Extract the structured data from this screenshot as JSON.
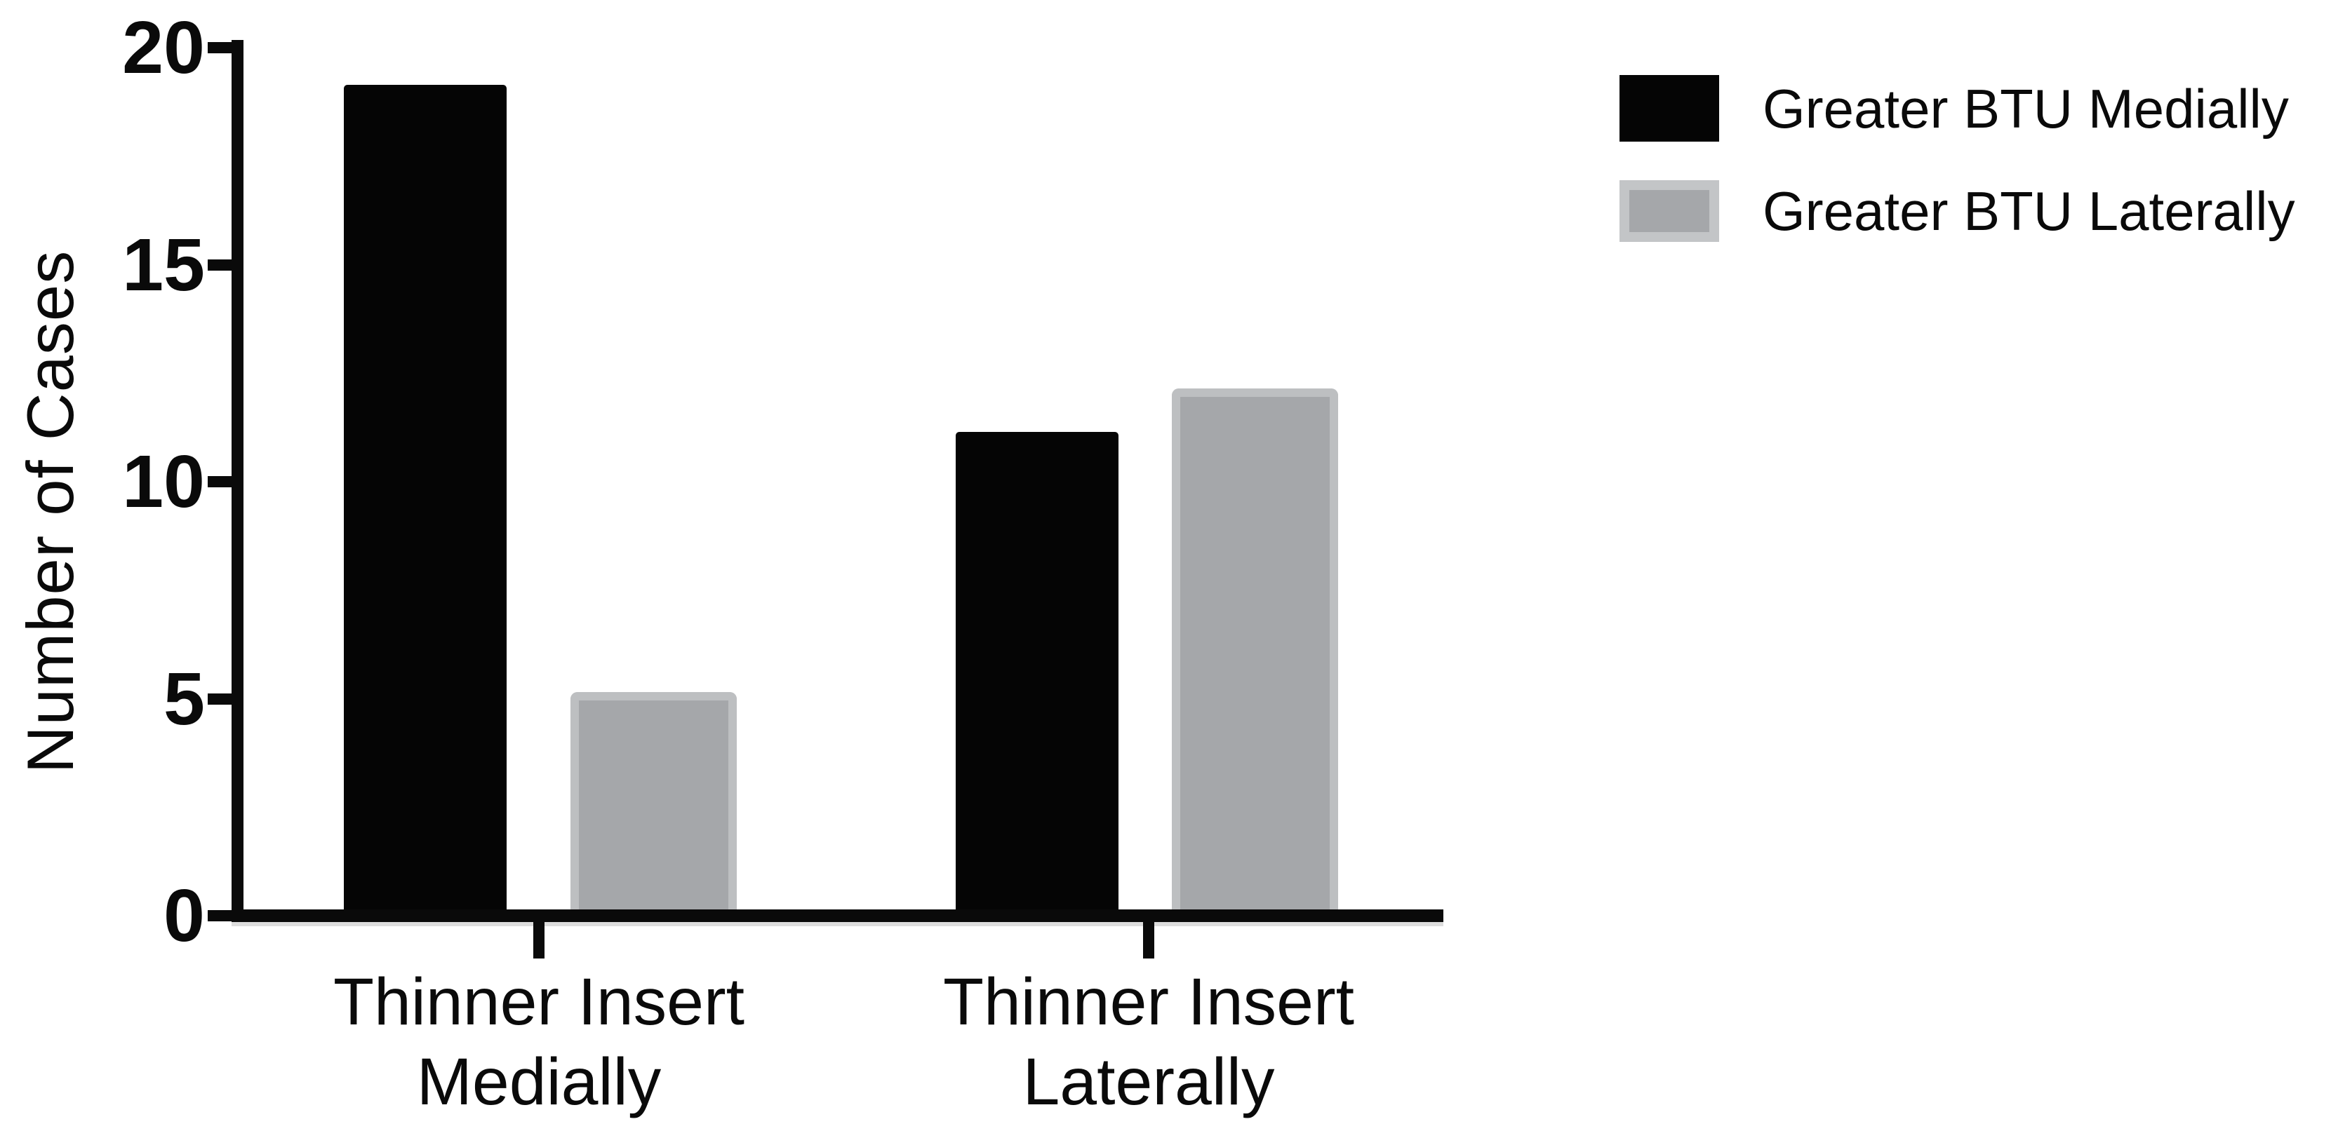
{
  "chart_data": {
    "type": "bar",
    "title": "",
    "ylabel": "Number of Cases",
    "xlabel": "",
    "ylim": [
      0,
      20
    ],
    "yticks": [
      0,
      5,
      10,
      15,
      20
    ],
    "grid": false,
    "legend_position": "top-right",
    "categories": [
      {
        "line1": "Thinner Insert",
        "line2": "Medially"
      },
      {
        "line1": "Thinner Insert",
        "line2": "Laterally"
      }
    ],
    "series": [
      {
        "name": "Greater BTU Medially",
        "color": "#050505",
        "values": [
          19,
          11
        ]
      },
      {
        "name": "Greater BTU Laterally",
        "color": "#a5a7aa",
        "border_color": "#bdbfc1",
        "legend_border_color": "#c3c5c7",
        "values": [
          5,
          12
        ]
      }
    ]
  }
}
